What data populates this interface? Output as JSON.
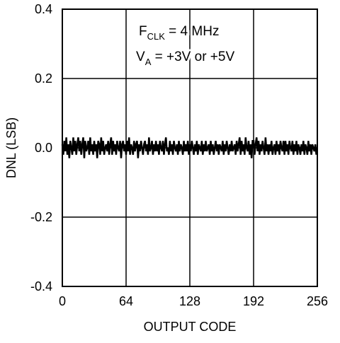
{
  "chart_data": {
    "type": "line",
    "ylabel": "DNL (LSB)",
    "xlabel": "OUTPUT CODE",
    "annotations": [
      {
        "main": "F",
        "sub": "CLK",
        "rest": " = 4 MHz"
      },
      {
        "main": "V",
        "sub": "A",
        "rest": " = +3V or +5V"
      }
    ],
    "xlim": [
      0,
      256
    ],
    "xticks": [
      0,
      64,
      128,
      192,
      256
    ],
    "ylim": [
      -0.4,
      0.4
    ],
    "yticks": [
      {
        "value": 0.4,
        "label": "0.4"
      },
      {
        "value": 0.2,
        "label": "0.2"
      },
      {
        "value": 0,
        "label": "0.0"
      },
      {
        "value": -0.2,
        "label": "-0.2"
      },
      {
        "value": -0.4,
        "label": "-0.4"
      }
    ],
    "grid": true,
    "series": [
      {
        "color": "#000000",
        "x": [
          0,
          1,
          2,
          3,
          4,
          5,
          6,
          7,
          8,
          9,
          10,
          11,
          12,
          13,
          14,
          15,
          16,
          17,
          18,
          19,
          20,
          21,
          22,
          23,
          24,
          25,
          26,
          27,
          28,
          29,
          30,
          31,
          32,
          33,
          34,
          35,
          36,
          37,
          38,
          39,
          40,
          41,
          42,
          43,
          44,
          45,
          46,
          47,
          48,
          49,
          50,
          51,
          52,
          53,
          54,
          55,
          56,
          57,
          58,
          59,
          60,
          61,
          62,
          63,
          64,
          65,
          66,
          67,
          68,
          69,
          70,
          71,
          72,
          73,
          74,
          75,
          76,
          77,
          78,
          79,
          80,
          81,
          82,
          83,
          84,
          85,
          86,
          87,
          88,
          89,
          90,
          91,
          92,
          93,
          94,
          95,
          96,
          97,
          98,
          99,
          100,
          101,
          102,
          103,
          104,
          105,
          106,
          107,
          108,
          109,
          110,
          111,
          112,
          113,
          114,
          115,
          116,
          117,
          118,
          119,
          120,
          121,
          122,
          123,
          124,
          125,
          126,
          127,
          128,
          129,
          130,
          131,
          132,
          133,
          134,
          135,
          136,
          137,
          138,
          139,
          140,
          141,
          142,
          143,
          144,
          145,
          146,
          147,
          148,
          149,
          150,
          151,
          152,
          153,
          154,
          155,
          156,
          157,
          158,
          159,
          160,
          161,
          162,
          163,
          164,
          165,
          166,
          167,
          168,
          169,
          170,
          171,
          172,
          173,
          174,
          175,
          176,
          177,
          178,
          179,
          180,
          181,
          182,
          183,
          184,
          185,
          186,
          187,
          188,
          189,
          190,
          191,
          192,
          193,
          194,
          195,
          196,
          197,
          198,
          199,
          200,
          201,
          202,
          203,
          204,
          205,
          206,
          207,
          208,
          209,
          210,
          211,
          212,
          213,
          214,
          215,
          216,
          217,
          218,
          219,
          220,
          221,
          222,
          223,
          224,
          225,
          226,
          227,
          228,
          229,
          230,
          231,
          232,
          233,
          234,
          235,
          236,
          237,
          238,
          239,
          240,
          241,
          242,
          243,
          244,
          245,
          246,
          247,
          248,
          249,
          250,
          251,
          252,
          253,
          254,
          255
        ],
        "values": [
          0.01,
          -0.02,
          0.02,
          -0.01,
          0.03,
          -0.02,
          0.01,
          -0.03,
          0.02,
          0.0,
          -0.02,
          0.03,
          -0.01,
          0.02,
          -0.02,
          0.01,
          0.03,
          -0.01,
          0.02,
          -0.02,
          0.01,
          0.03,
          -0.03,
          0.02,
          -0.01,
          0.0,
          0.02,
          -0.02,
          0.03,
          -0.01,
          0.01,
          -0.02,
          0.02,
          -0.01,
          0.01,
          -0.03,
          0.02,
          0.01,
          -0.02,
          0.03,
          -0.01,
          0.02,
          -0.02,
          0.0,
          0.01,
          -0.01,
          0.02,
          -0.02,
          0.01,
          0.03,
          -0.02,
          0.02,
          -0.01,
          0.01,
          -0.02,
          0.02,
          0.0,
          -0.01,
          0.02,
          -0.03,
          0.01,
          0.02,
          -0.01,
          0.01,
          -0.02,
          0.02,
          -0.01,
          0.03,
          -0.02,
          0.01,
          0.0,
          -0.02,
          0.02,
          -0.01,
          0.01,
          0.02,
          -0.03,
          0.01,
          -0.01,
          0.02,
          0.0,
          -0.02,
          0.01,
          0.02,
          -0.01,
          0.01,
          -0.02,
          0.03,
          -0.01,
          0.0,
          0.02,
          -0.02,
          0.01,
          -0.01,
          0.02,
          -0.01,
          0.01,
          -0.02,
          0.02,
          0.0,
          -0.01,
          0.02,
          -0.02,
          0.01,
          0.03,
          -0.01,
          0.0,
          -0.02,
          0.02,
          -0.01,
          0.01,
          -0.02,
          0.02,
          0.0,
          -0.01,
          0.01,
          -0.02,
          0.02,
          -0.01,
          0.01,
          0.0,
          -0.02,
          0.02,
          -0.01,
          0.01,
          -0.01,
          0.02,
          -0.02,
          0.01,
          -0.01,
          0.02,
          0.0,
          -0.02,
          0.01,
          -0.01,
          0.02,
          -0.02,
          0.01,
          0.0,
          -0.01,
          0.02,
          -0.02,
          0.01,
          -0.01,
          0.02,
          -0.01,
          0.0,
          0.01,
          -0.02,
          0.02,
          -0.01,
          0.01,
          -0.02,
          0.0,
          0.02,
          -0.01,
          0.01,
          -0.02,
          0.01,
          0.0,
          -0.01,
          0.02,
          -0.02,
          0.01,
          -0.01,
          0.02,
          0.0,
          -0.02,
          0.01,
          -0.01,
          0.02,
          -0.01,
          0.0,
          0.01,
          -0.02,
          0.02,
          -0.01,
          0.01,
          0.03,
          -0.02,
          0.02,
          -0.01,
          0.01,
          -0.02,
          0.03,
          0.0,
          -0.01,
          0.02,
          -0.02,
          0.01,
          -0.03,
          0.02,
          0.02,
          -0.02,
          0.01,
          0.03,
          -0.01,
          0.02,
          -0.02,
          0.01,
          -0.01,
          0.02,
          0.0,
          -0.02,
          0.03,
          -0.01,
          0.01,
          -0.02,
          0.01,
          -0.01,
          0.02,
          -0.02,
          0.0,
          0.01,
          -0.02,
          0.02,
          -0.01,
          0.01,
          -0.02,
          0.02,
          0.0,
          -0.01,
          0.02,
          -0.02,
          0.02,
          -0.01,
          0.01,
          -0.02,
          0.02,
          0.0,
          -0.01,
          0.02,
          -0.02,
          0.01,
          -0.01,
          0.02,
          -0.02,
          0.01,
          0.0,
          -0.02,
          0.01,
          -0.01,
          0.02,
          -0.02,
          0.01,
          0.0,
          -0.02,
          0.02,
          -0.01,
          0.01,
          -0.02,
          0.01,
          0.0,
          -0.01,
          0.01,
          -0.02
        ]
      }
    ]
  }
}
